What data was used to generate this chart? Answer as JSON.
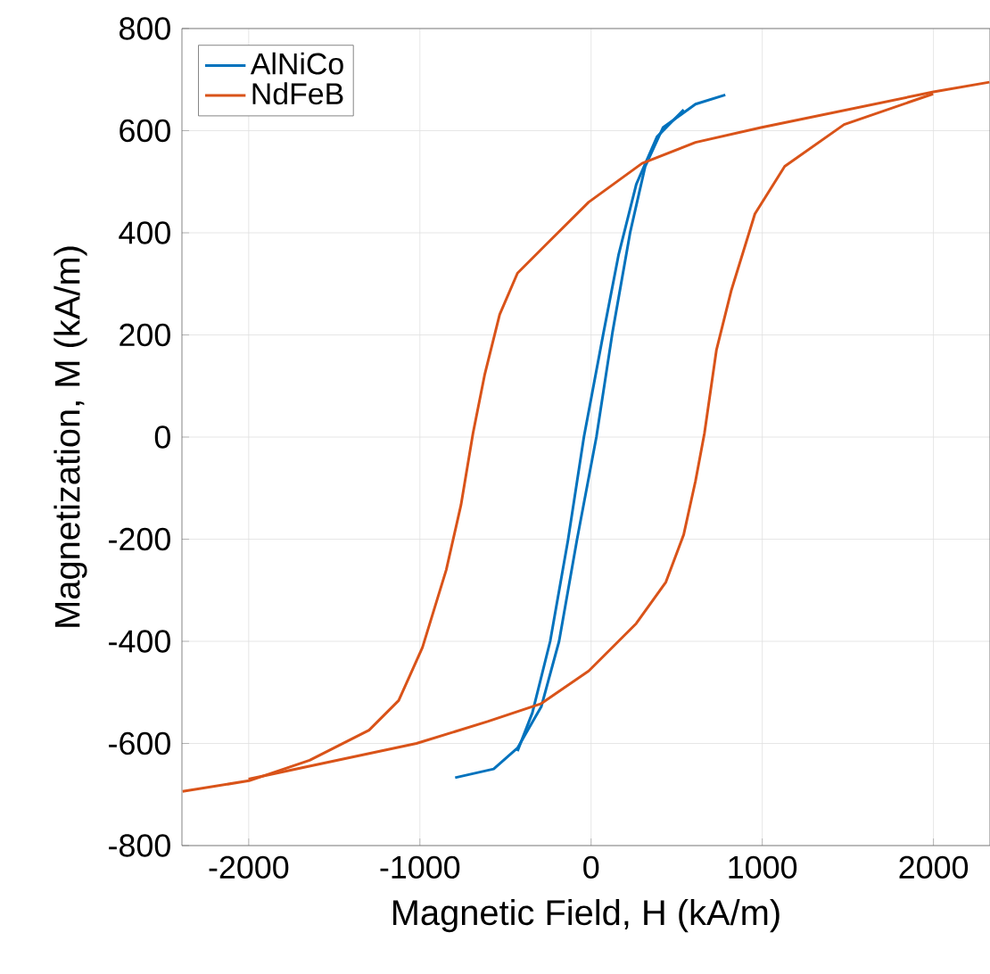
{
  "chart_data": {
    "type": "line",
    "xlabel": "Magnetic Field, H (kA/m)",
    "ylabel": "Magnetization, M (kA/m)",
    "xlim": [
      -2390,
      2330
    ],
    "ylim": [
      -800,
      800
    ],
    "xticks": [
      -2000,
      -1000,
      0,
      1000,
      2000
    ],
    "yticks": [
      -800,
      -600,
      -400,
      -200,
      0,
      200,
      400,
      600,
      800
    ],
    "grid": true,
    "legend": "top left",
    "series": [
      {
        "name": "AlNiCo",
        "color": "#0072bd",
        "x": [
          -794,
          -569,
          -430,
          -291,
          -187,
          -83,
          31,
          125,
          229,
          316,
          420,
          610,
          784
        ],
        "values": [
          -667,
          -650,
          -609,
          -528,
          -400,
          -202,
          0,
          205,
          402,
          530,
          606,
          652,
          670
        ]
      },
      {
        "color": "#0072bd",
        "x": [
          -430,
          -343,
          -239,
          -135,
          -42,
          73,
          160,
          264,
          385,
          541
        ],
        "values": [
          -615,
          -540,
          -400,
          -202,
          0,
          205,
          356,
          495,
          588,
          641
        ]
      },
      {
        "name": "NdFeB",
        "color": "#d95319",
        "x": [
          -2386,
          -1998,
          -1644,
          -1297,
          -1124,
          -985,
          -846,
          -760,
          -690,
          -621,
          -534,
          -430,
          -257,
          -14,
          298,
          610,
          992,
          2000,
          2327
        ],
        "values": [
          -694,
          -673,
          -633,
          -574,
          -516,
          -412,
          -260,
          -133,
          7,
          123,
          240,
          321,
          379,
          460,
          536,
          577,
          606,
          676,
          695
        ]
      },
      {
        "color": "#d95319",
        "x": [
          -2001,
          -1020,
          -604,
          -291,
          -14,
          264,
          437,
          541,
          610,
          662,
          732,
          818,
          957,
          1131,
          1478,
          1998
        ],
        "values": [
          -670,
          -600,
          -557,
          -522,
          -458,
          -365,
          -284,
          -191,
          -86,
          7,
          170,
          286,
          437,
          530,
          612,
          672
        ]
      }
    ]
  }
}
